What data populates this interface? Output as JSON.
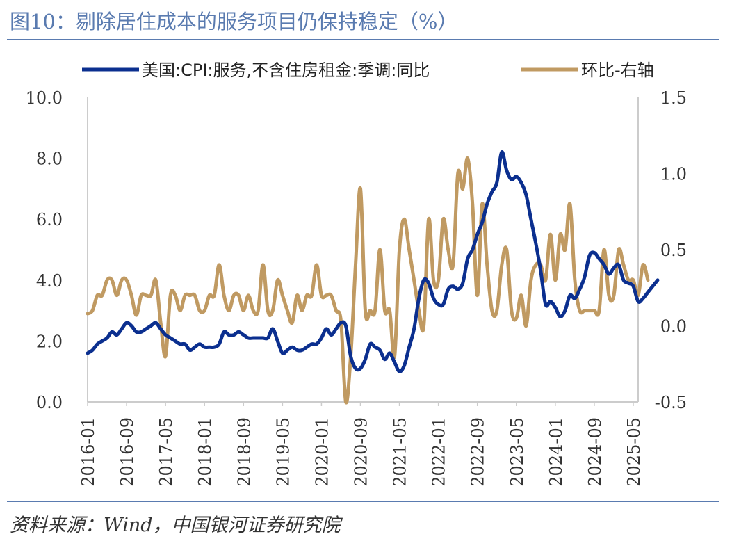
{
  "title": "图10：剔除居住成本的服务项目仍保持稳定（%）",
  "source": "资料来源：Wind，中国银河证券研究院",
  "chart_data": {
    "type": "line",
    "legend_position": "top",
    "grid": false,
    "x_tick_labels": [
      "2016-01",
      "2016-09",
      "2017-05",
      "2018-01",
      "2018-09",
      "2019-05",
      "2020-01",
      "2020-09",
      "2021-05",
      "2022-01",
      "2022-09",
      "2023-05",
      "2024-01",
      "2024-09",
      "2025-05"
    ],
    "x_start": "2016-01",
    "x_end": "2025-06",
    "y_left": {
      "range": [
        0.0,
        10.0
      ],
      "ticks": [
        "0.0",
        "2.0",
        "4.0",
        "6.0",
        "8.0",
        "10.0"
      ]
    },
    "y_right": {
      "range": [
        -0.5,
        1.5
      ],
      "ticks": [
        "-0.5",
        "0.0",
        "0.5",
        "1.0",
        "1.5"
      ]
    },
    "series": [
      {
        "name": "美国:CPI:服务,不含住房租金:季调:同比",
        "axis": "left",
        "color": "#0b2f8f",
        "start": "2016-01",
        "values": [
          1.6,
          1.7,
          1.9,
          2.0,
          2.1,
          2.3,
          2.2,
          2.4,
          2.6,
          2.5,
          2.3,
          2.3,
          2.4,
          2.5,
          2.6,
          2.4,
          2.2,
          2.1,
          2.0,
          1.9,
          1.9,
          1.7,
          1.8,
          1.9,
          1.8,
          1.8,
          1.8,
          1.9,
          2.3,
          2.2,
          2.2,
          2.3,
          2.2,
          2.1,
          2.1,
          2.1,
          2.1,
          2.1,
          2.4,
          2.0,
          1.6,
          1.7,
          1.8,
          1.7,
          1.7,
          1.8,
          1.9,
          1.9,
          2.1,
          2.4,
          2.2,
          2.4,
          2.6,
          2.5,
          1.5,
          1.1,
          1.1,
          1.4,
          1.9,
          1.8,
          1.7,
          1.4,
          1.6,
          1.3,
          1.0,
          1.2,
          1.8,
          2.4,
          3.4,
          4.0,
          3.9,
          3.4,
          3.2,
          3.2,
          3.7,
          3.8,
          3.7,
          3.9,
          4.7,
          5.0,
          5.5,
          5.9,
          6.5,
          6.9,
          7.2,
          8.2,
          7.6,
          7.3,
          7.4,
          7.2,
          6.8,
          6.0,
          5.2,
          4.3,
          3.2,
          3.3,
          3.1,
          2.8,
          3.0,
          3.5,
          3.4,
          3.7,
          4.1,
          4.8,
          4.9,
          4.7,
          4.5,
          4.2,
          4.4,
          4.5,
          4.0,
          3.9,
          3.8,
          3.3,
          3.4,
          3.6,
          3.8,
          4.0
        ]
      },
      {
        "name": "环比-右轴",
        "axis": "right",
        "color": "#c09a62",
        "start": "2016-01",
        "values": [
          0.08,
          0.1,
          0.2,
          0.2,
          0.3,
          0.3,
          0.2,
          0.3,
          0.3,
          0.2,
          0.07,
          0.2,
          0.2,
          0.2,
          0.3,
          0.02,
          -0.2,
          0.2,
          0.2,
          0.1,
          0.2,
          0.2,
          0.2,
          0.1,
          0.1,
          0.2,
          0.2,
          0.4,
          0.2,
          0.1,
          0.2,
          0.2,
          0.1,
          0.2,
          0.1,
          0.1,
          0.4,
          0.1,
          0.1,
          0.3,
          0.2,
          0.1,
          0.02,
          0.2,
          0.1,
          0.2,
          0.2,
          0.4,
          0.2,
          0.2,
          0.2,
          0.1,
          0.03,
          -0.5,
          -0.2,
          0.4,
          0.9,
          0.1,
          0.1,
          0.1,
          0.5,
          0.1,
          0.1,
          -0.2,
          0.5,
          0.7,
          0.5,
          0.3,
          0.1,
          0.0,
          0.7,
          0.3,
          0.3,
          0.7,
          0.5,
          0.4,
          1.0,
          0.9,
          1.1,
          0.8,
          0.2,
          0.8,
          0.4,
          0.1,
          0.1,
          0.4,
          0.5,
          0.1,
          0.05,
          0.2,
          0.0,
          0.3,
          0.4,
          0.4,
          0.3,
          0.6,
          0.3,
          0.6,
          0.5,
          0.8,
          0.3,
          0.1,
          0.1,
          0.1,
          0.1,
          0.1,
          0.5,
          0.2,
          0.2,
          0.5,
          0.4,
          0.3,
          0.3,
          0.2,
          0.4,
          0.3
        ]
      }
    ]
  }
}
